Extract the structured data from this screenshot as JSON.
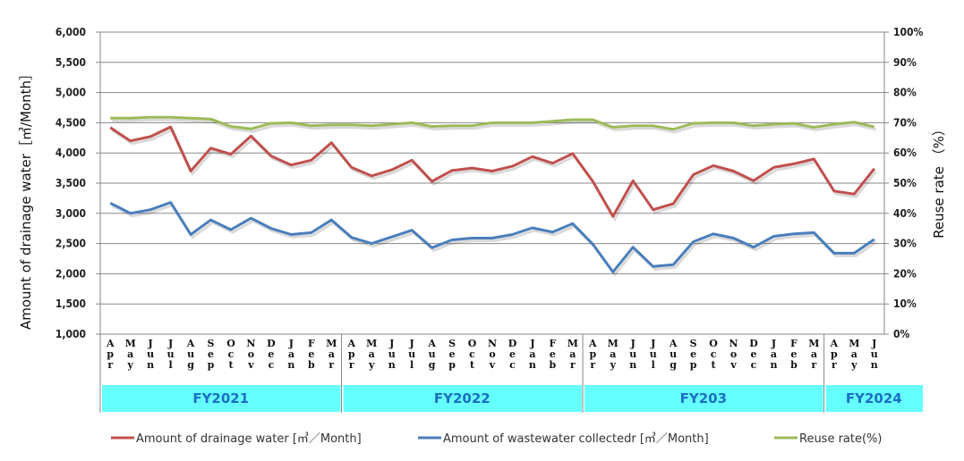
{
  "chart_data": {
    "type": "line",
    "categories": [
      "Apr",
      "May",
      "Jun",
      "Jul",
      "Aug",
      "Sep",
      "Oct",
      "Nov",
      "Dec",
      "Jan",
      "Feb",
      "Mar",
      "Apr",
      "May",
      "Jun",
      "Jul",
      "Aug",
      "Sep",
      "Oct",
      "Nov",
      "Dec",
      "Jan",
      "Feb",
      "Mar",
      "Apr",
      "May",
      "Jun",
      "Jul",
      "Aug",
      "Sep",
      "Oct",
      "Nov",
      "Dec",
      "Jan",
      "Feb",
      "Mar",
      "Apr",
      "May",
      "Jun"
    ],
    "groups": [
      {
        "label": "FY2021",
        "count": 12
      },
      {
        "label": "FY2022",
        "count": 12
      },
      {
        "label": "FY203",
        "count": 12
      },
      {
        "label": "FY2024",
        "count": 3
      }
    ],
    "ylabel": "Amount of drainage water［㎥/Month］",
    "y2label": "Reuse rate （%）",
    "ylim": [
      1000,
      6000
    ],
    "y2lim": [
      0,
      100
    ],
    "yticks": [
      "1,000",
      "1,500",
      "2,000",
      "2,500",
      "3,000",
      "3,500",
      "4,000",
      "4,500",
      "5,000",
      "5,500",
      "6,000"
    ],
    "y2ticks": [
      "0%",
      "10%",
      "20%",
      "30%",
      "40%",
      "50%",
      "60%",
      "70%",
      "80%",
      "90%",
      "100%"
    ],
    "grid": true,
    "legend_position": "bottom",
    "series": [
      {
        "name": "Amount of drainage water [㎥／Month]",
        "axis": "left",
        "color": "#c0504d",
        "values": [
          4420,
          4200,
          4270,
          4430,
          3700,
          4080,
          3980,
          4280,
          3950,
          3800,
          3880,
          4170,
          3760,
          3620,
          3720,
          3880,
          3530,
          3710,
          3750,
          3700,
          3780,
          3940,
          3830,
          3990,
          3530,
          2950,
          3540,
          3060,
          3160,
          3640,
          3790,
          3700,
          3540,
          3760,
          3820,
          3900,
          3370,
          3320,
          3740
        ]
      },
      {
        "name": "Amount of wastewater collectedr [㎥／Month]",
        "axis": "left",
        "color": "#4a7ebb",
        "values": [
          3170,
          3000,
          3060,
          3180,
          2650,
          2890,
          2730,
          2920,
          2750,
          2650,
          2680,
          2890,
          2600,
          2500,
          2610,
          2720,
          2430,
          2560,
          2590,
          2590,
          2650,
          2760,
          2690,
          2830,
          2490,
          2030,
          2440,
          2120,
          2150,
          2530,
          2660,
          2590,
          2440,
          2620,
          2660,
          2680,
          2340,
          2340,
          2570
        ]
      },
      {
        "name": "Reuse rate(%)",
        "axis": "right",
        "color": "#9bbb59",
        "values": [
          71.5,
          71.5,
          71.8,
          71.8,
          71.5,
          71.2,
          68.8,
          68,
          69.8,
          70,
          69,
          69.3,
          69.3,
          69,
          69.5,
          70,
          68.8,
          69,
          69,
          70,
          70,
          70,
          70.5,
          71,
          71,
          68.5,
          69,
          69,
          67.8,
          69.8,
          70,
          70,
          69,
          69.5,
          69.8,
          68.5,
          69.5,
          70.2,
          68.6
        ]
      }
    ]
  }
}
